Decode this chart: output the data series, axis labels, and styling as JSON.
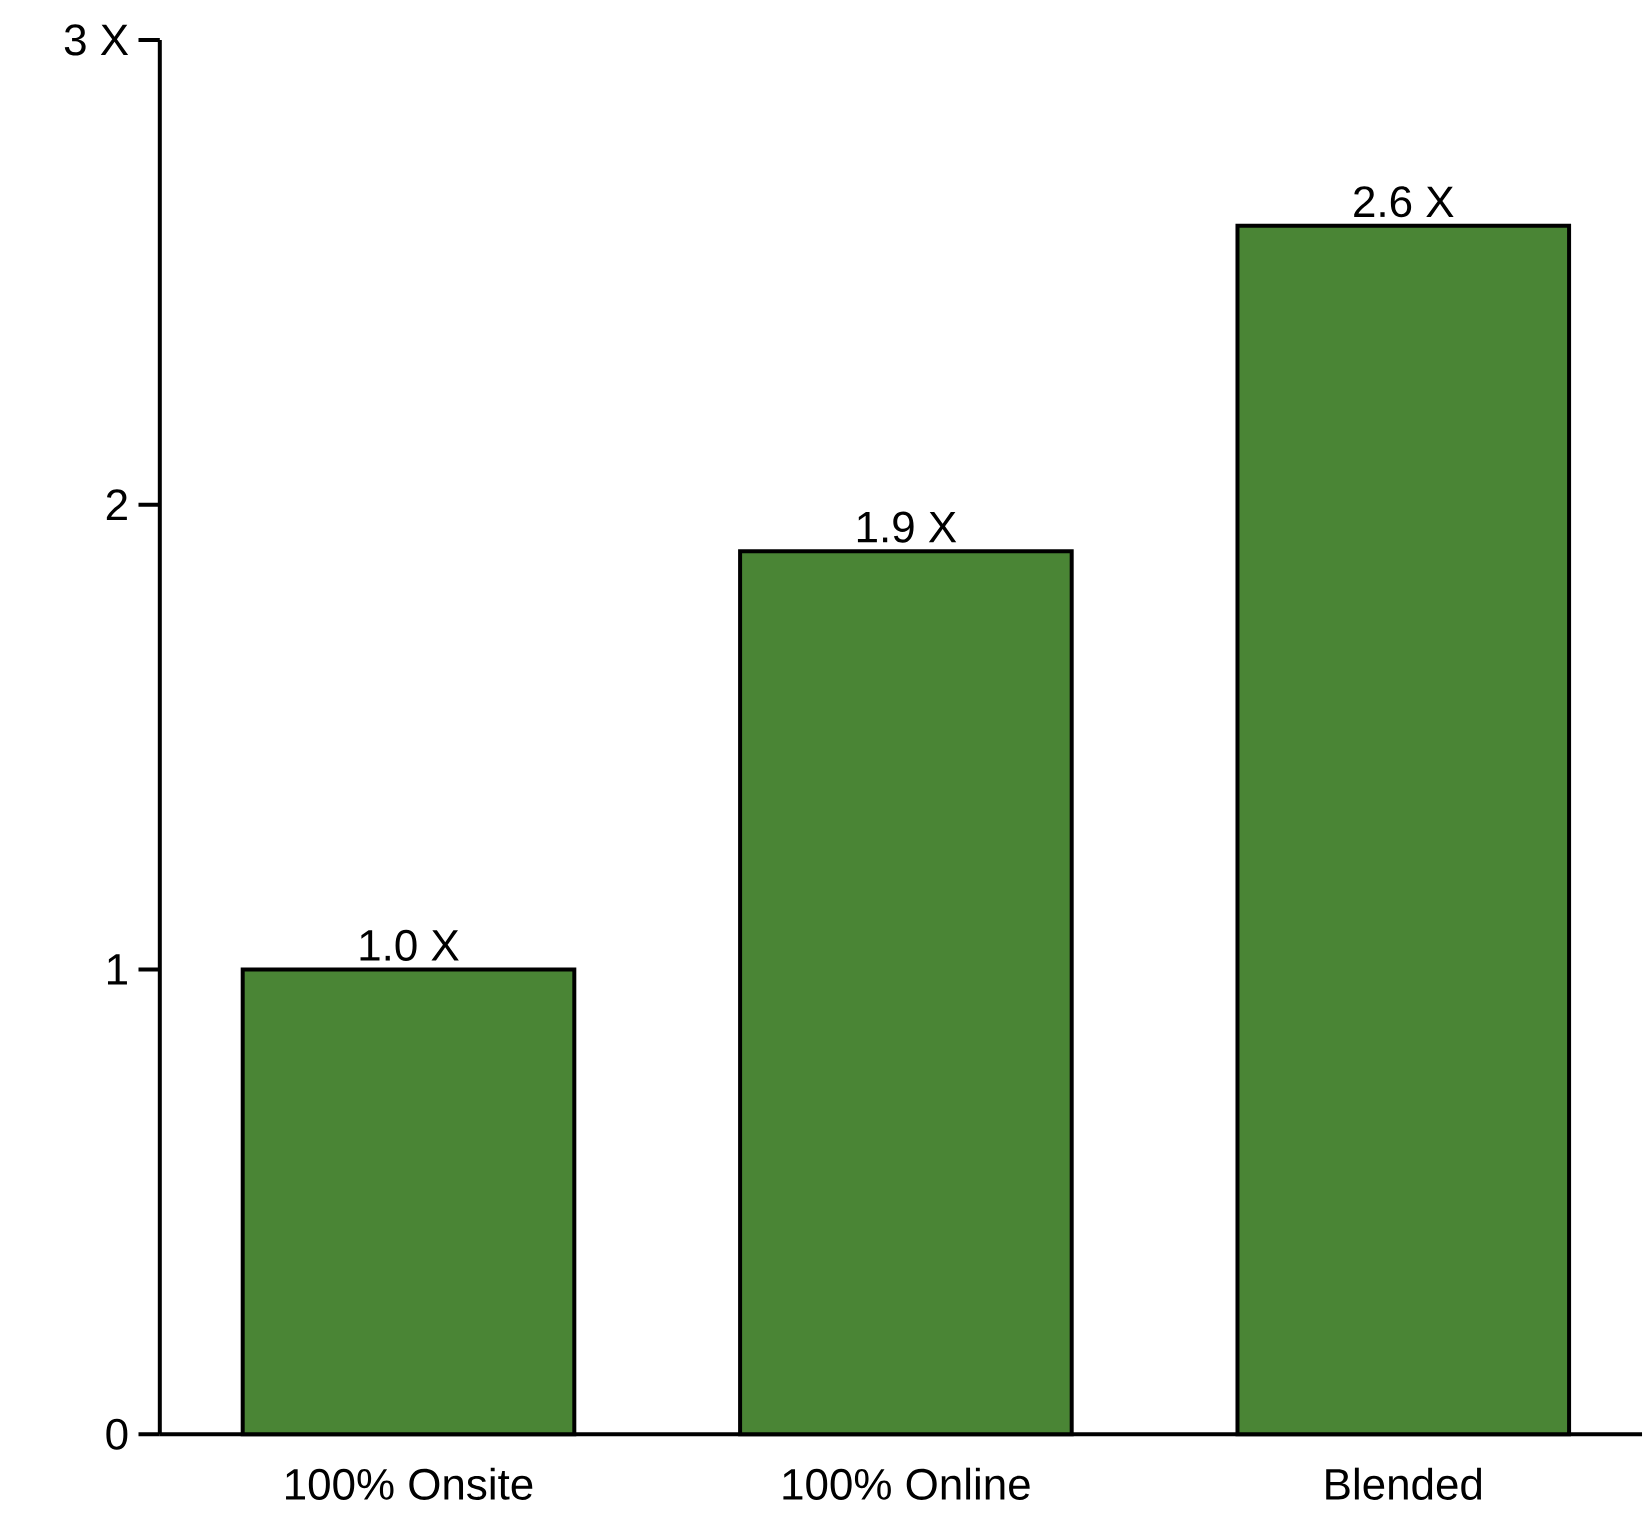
{
  "chart_data": {
    "type": "bar",
    "categories": [
      "100% Onsite",
      "100% Online",
      "Blended"
    ],
    "values": [
      1.0,
      1.9,
      2.6
    ],
    "value_labels": [
      "1.0 X",
      "1.9 X",
      "2.6 X"
    ],
    "color": "#4a8535",
    "ylim": [
      0,
      3
    ],
    "yticks": [
      0,
      1,
      2,
      {
        "value": 3,
        "label": "3 X"
      }
    ],
    "grid": false
  }
}
